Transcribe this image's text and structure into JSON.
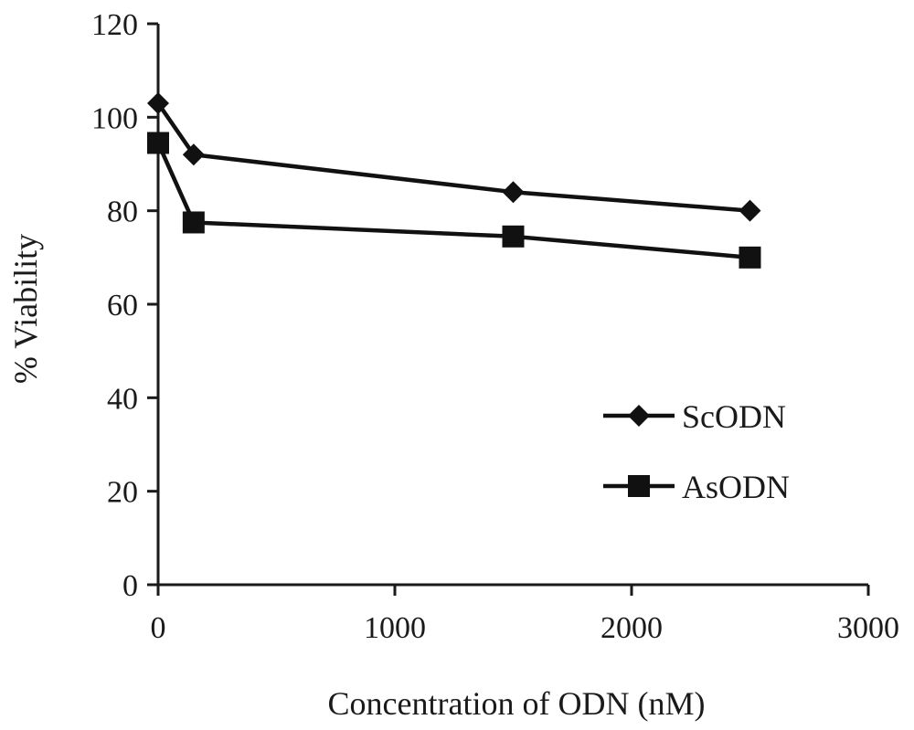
{
  "chart_data": {
    "type": "line",
    "title": "",
    "xlabel": "Concentration of ODN (nM)",
    "ylabel": "% Viability",
    "xlim": [
      0,
      3000
    ],
    "ylim": [
      0,
      120
    ],
    "x_ticks": [
      0,
      1000,
      2000,
      3000
    ],
    "y_ticks": [
      0,
      20,
      40,
      60,
      80,
      100,
      120
    ],
    "grid": false,
    "legend_position": "right",
    "series": [
      {
        "name": "ScODN",
        "marker": "diamond",
        "color": "#111111",
        "x": [
          0,
          150,
          1500,
          2500
        ],
        "y": [
          103,
          92,
          84,
          80
        ]
      },
      {
        "name": "AsODN",
        "marker": "square",
        "color": "#111111",
        "x": [
          0,
          150,
          1500,
          2500
        ],
        "y": [
          94.5,
          77.5,
          74.5,
          70
        ]
      }
    ]
  }
}
